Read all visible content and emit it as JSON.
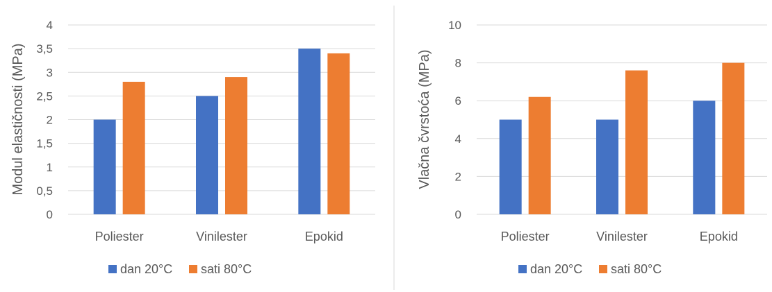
{
  "chart_data": [
    {
      "type": "bar",
      "title": "",
      "xlabel": "",
      "ylabel": "Modul elastičnosti (MPa)",
      "categories": [
        "Poliester",
        "Vinilester",
        "Epokid"
      ],
      "ylim": [
        0,
        4
      ],
      "yticks": [
        "0",
        "0,5",
        "1",
        "1,5",
        "2",
        "2,5",
        "3",
        "3,5",
        "4"
      ],
      "grid": true,
      "legend_position": "bottom",
      "series": [
        {
          "name": "dan 20°C",
          "color": "#4472c4",
          "values": [
            2.0,
            2.5,
            3.5
          ]
        },
        {
          "name": "sati 80°C",
          "color": "#ed7d31",
          "values": [
            2.8,
            2.9,
            3.4
          ]
        }
      ]
    },
    {
      "type": "bar",
      "title": "",
      "xlabel": "",
      "ylabel": "Vlačna čvrstoća (MPa)",
      "categories": [
        "Poliester",
        "Vinilester",
        "Epokid"
      ],
      "ylim": [
        0,
        10
      ],
      "yticks": [
        "0",
        "2",
        "4",
        "6",
        "8",
        "10"
      ],
      "grid": true,
      "legend_position": "bottom",
      "series": [
        {
          "name": "dan 20°C",
          "color": "#4472c4",
          "values": [
            5.0,
            5.0,
            6.0
          ]
        },
        {
          "name": "sati 80°C",
          "color": "#ed7d31",
          "values": [
            6.2,
            7.6,
            8.0
          ]
        }
      ]
    }
  ]
}
